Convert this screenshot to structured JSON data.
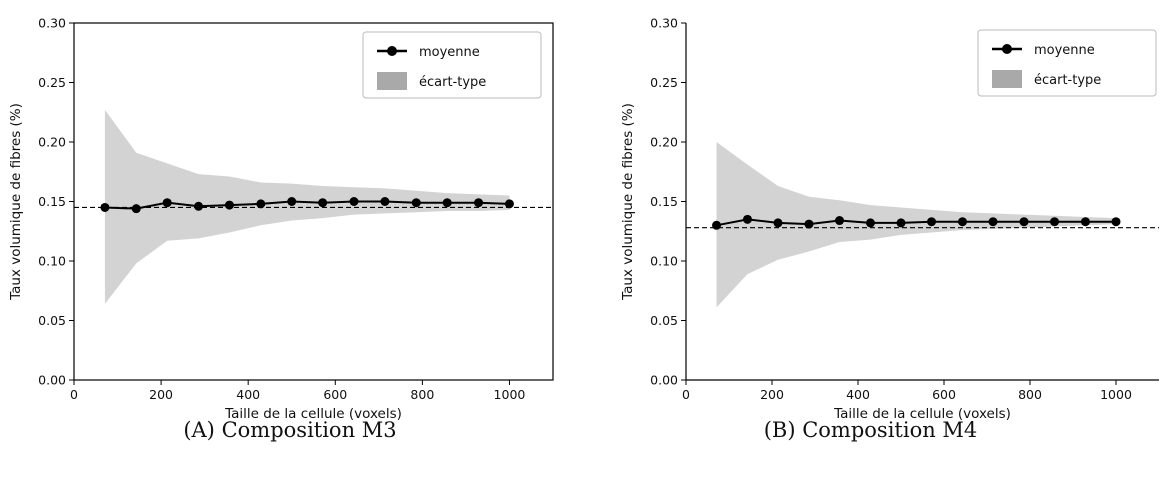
{
  "chart_data": [
    {
      "type": "line",
      "xlabel": "Taille de la cellule (voxels)",
      "ylabel": "Taux volumique de fibres (%)",
      "xlim": [
        0,
        1100
      ],
      "ylim": [
        0.0,
        0.3
      ],
      "xticks": [
        "0",
        "200",
        "400",
        "600",
        "800",
        "1000"
      ],
      "yticks": [
        "0.00",
        "0.05",
        "0.10",
        "0.15",
        "0.20",
        "0.25",
        "0.30"
      ],
      "legend": {
        "position": "top-right",
        "entries": [
          "moyenne",
          "écart-type"
        ]
      },
      "reference_line": 0.145,
      "x": [
        71,
        143,
        214,
        286,
        357,
        429,
        500,
        571,
        643,
        714,
        786,
        857,
        929,
        1000
      ],
      "series": [
        {
          "name": "moyenne",
          "values": [
            0.145,
            0.144,
            0.149,
            0.146,
            0.147,
            0.148,
            0.15,
            0.149,
            0.15,
            0.15,
            0.149,
            0.149,
            0.149,
            0.148
          ]
        },
        {
          "name": "écart-type",
          "upper": [
            0.227,
            0.191,
            0.182,
            0.173,
            0.171,
            0.166,
            0.165,
            0.163,
            0.162,
            0.161,
            0.159,
            0.157,
            0.156,
            0.155
          ],
          "lower": [
            0.064,
            0.098,
            0.117,
            0.119,
            0.124,
            0.13,
            0.134,
            0.136,
            0.139,
            0.14,
            0.141,
            0.142,
            0.142,
            0.143
          ]
        }
      ]
    },
    {
      "type": "line",
      "xlabel": "Taille de la cellule (voxels)",
      "ylabel": "Taux volumique de fibres (%)",
      "xlim": [
        0,
        1100
      ],
      "ylim": [
        0.0,
        0.3
      ],
      "xticks": [
        "0",
        "200",
        "400",
        "600",
        "800",
        "1000"
      ],
      "yticks": [
        "0.00",
        "0.05",
        "0.10",
        "0.15",
        "0.20",
        "0.25",
        "0.30"
      ],
      "legend": {
        "position": "top-right",
        "entries": [
          "moyenne",
          "écart-type"
        ]
      },
      "reference_line": 0.128,
      "x": [
        71,
        143,
        214,
        286,
        357,
        429,
        500,
        571,
        643,
        714,
        786,
        857,
        929,
        1000
      ],
      "series": [
        {
          "name": "moyenne",
          "values": [
            0.13,
            0.135,
            0.132,
            0.131,
            0.134,
            0.132,
            0.132,
            0.133,
            0.133,
            0.133,
            0.133,
            0.133,
            0.133,
            0.133
          ]
        },
        {
          "name": "écart-type",
          "upper": [
            0.2,
            0.181,
            0.163,
            0.154,
            0.151,
            0.147,
            0.145,
            0.143,
            0.141,
            0.14,
            0.139,
            0.138,
            0.137,
            0.136
          ],
          "lower": [
            0.061,
            0.089,
            0.101,
            0.108,
            0.116,
            0.118,
            0.122,
            0.124,
            0.126,
            0.127,
            0.128,
            0.129,
            0.13,
            0.131
          ]
        }
      ]
    }
  ],
  "captions": [
    {
      "label": "(A)",
      "text": "Composition M3"
    },
    {
      "label": "(B)",
      "text": "Composition M4"
    }
  ],
  "colors": {
    "band": "#d3d3d3",
    "legend_band": "#a9a9a9",
    "line": "#000000"
  }
}
